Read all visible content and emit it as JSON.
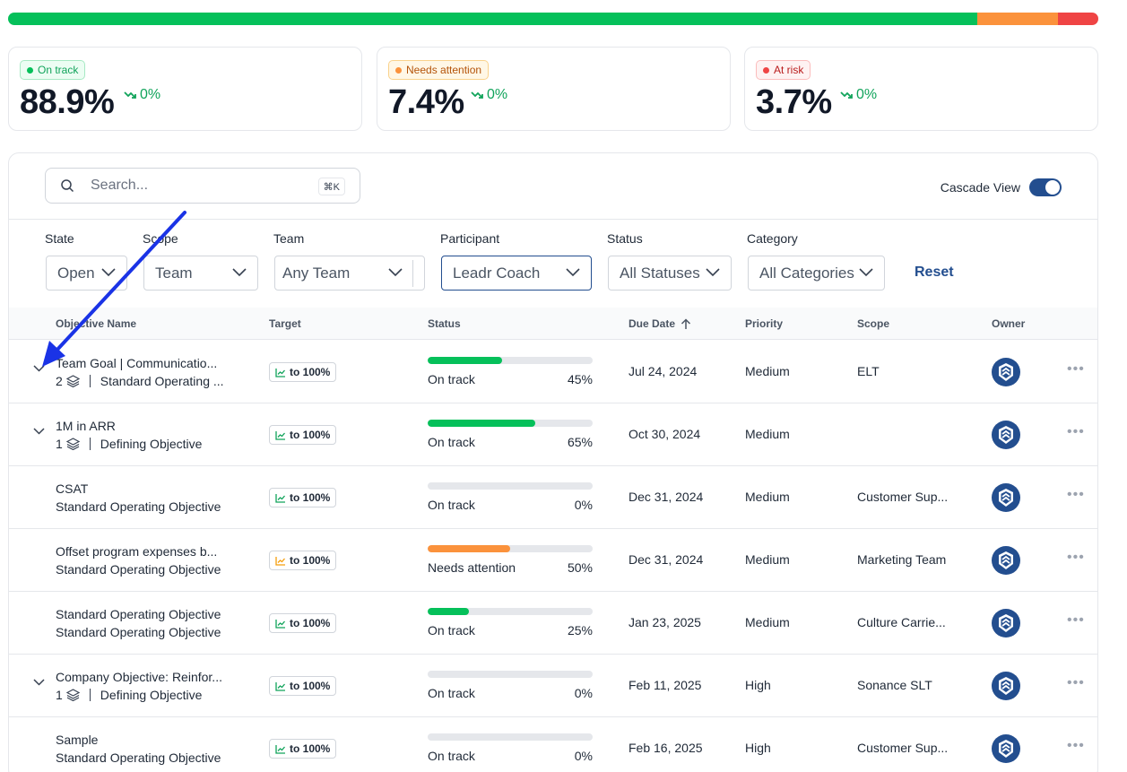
{
  "distribution": {
    "segments": [
      {
        "status": "on-track",
        "fraction": 0.889,
        "color": "#05c05a"
      },
      {
        "status": "needs-attention",
        "fraction": 0.074,
        "color": "#fb923c"
      },
      {
        "status": "at-risk",
        "fraction": 0.037,
        "color": "#ef4444"
      }
    ]
  },
  "cards": [
    {
      "badge": "On track",
      "value": "88.9%",
      "trend": "0%",
      "badge_color": "#10a35a",
      "badge_bg": "#ecfdf3",
      "badge_border": "#a7e9c4"
    },
    {
      "badge": "Needs attention",
      "value": "7.4%",
      "trend": "0%",
      "badge_color": "#b45309",
      "badge_bg": "#fff7e6",
      "badge_border": "#f9d28b"
    },
    {
      "badge": "At risk",
      "value": "3.7%",
      "trend": "0%",
      "badge_color": "#b91c1c",
      "badge_bg": "#fef2f2",
      "badge_border": "#fbbcbc"
    }
  ],
  "search": {
    "placeholder": "Search...",
    "shortcut": "⌘K"
  },
  "cascade": {
    "label": "Cascade View",
    "enabled": true
  },
  "filters": [
    {
      "label": "State",
      "value": "Open"
    },
    {
      "label": "Scope",
      "value": "Team"
    },
    {
      "label": "Team",
      "value": "Any Team"
    },
    {
      "label": "Participant",
      "value": "Leadr Coach"
    },
    {
      "label": "Status",
      "value": "All Statuses"
    },
    {
      "label": "Category",
      "value": "All Categories"
    }
  ],
  "reset_label": "Reset",
  "columns": {
    "name": "Objective Name",
    "target": "Target",
    "status": "Status",
    "due": "Due Date",
    "priority": "Priority",
    "scope": "Scope",
    "owner": "Owner"
  },
  "rows": [
    {
      "name": "Team Goal | Communicatio...",
      "count": "2",
      "type": "Standard Operating ...",
      "expandable": true,
      "target": "to 100%",
      "progress": 45,
      "status": "On track",
      "pct": "45%",
      "due": "Jul 24, 2024",
      "priority": "Medium",
      "scope": "ELT"
    },
    {
      "name": "1M in ARR",
      "count": "1",
      "type": "Defining Objective",
      "expandable": true,
      "target": "to 100%",
      "progress": 65,
      "status": "On track",
      "pct": "65%",
      "due": "Oct 30, 2024",
      "priority": "Medium",
      "scope": ""
    },
    {
      "name": "CSAT",
      "count": "",
      "type": "Standard Operating Objective",
      "expandable": false,
      "target": "to 100%",
      "progress": 0,
      "status": "On track",
      "pct": "0%",
      "due": "Dec 31, 2024",
      "priority": "Medium",
      "scope": "Customer Sup..."
    },
    {
      "name": "Offset program expenses b...",
      "count": "",
      "type": "Standard Operating Objective",
      "expandable": false,
      "target": "to 100%",
      "progress": 50,
      "status": "Needs attention",
      "pct": "50%",
      "due": "Dec 31, 2024",
      "priority": "Medium",
      "scope": "Marketing Team"
    },
    {
      "name": "Standard Operating Objective",
      "count": "",
      "type": "Standard Operating Objective",
      "expandable": false,
      "target": "to 100%",
      "progress": 25,
      "status": "On track",
      "pct": "25%",
      "due": "Jan 23, 2025",
      "priority": "Medium",
      "scope": "Culture Carrie..."
    },
    {
      "name": "Company Objective: Reinfor...",
      "count": "1",
      "type": "Defining Objective",
      "expandable": true,
      "target": "to 100%",
      "progress": 0,
      "status": "On track",
      "pct": "0%",
      "due": "Feb 11, 2025",
      "priority": "High",
      "scope": "Sonance SLT"
    },
    {
      "name": "Sample",
      "count": "",
      "type": "Standard Operating Objective",
      "expandable": false,
      "target": "to 100%",
      "progress": 0,
      "status": "On track",
      "pct": "0%",
      "due": "Feb 16, 2025",
      "priority": "High",
      "scope": "Customer Sup..."
    }
  ],
  "colors": {
    "on_track": "#05c05a",
    "needs_attention": "#fb923c",
    "brand": "#234e8f",
    "annotation_arrow": "#1a33e6"
  }
}
